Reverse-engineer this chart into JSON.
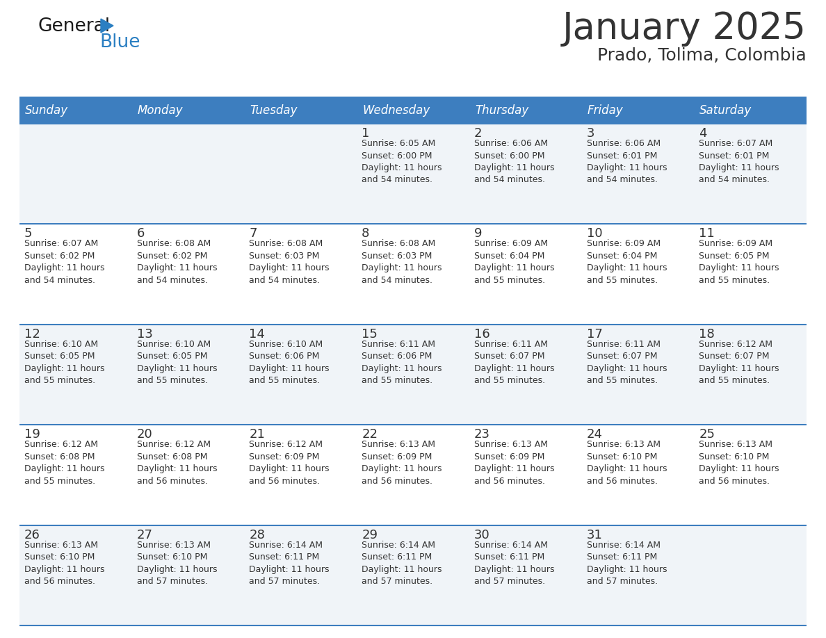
{
  "title": "January 2025",
  "subtitle": "Prado, Tolima, Colombia",
  "header_color": "#3d7ebf",
  "header_text_color": "#ffffff",
  "day_names": [
    "Sunday",
    "Monday",
    "Tuesday",
    "Wednesday",
    "Thursday",
    "Friday",
    "Saturday"
  ],
  "background_color": "#ffffff",
  "cell_even_color": "#f0f4f8",
  "cell_odd_color": "#ffffff",
  "border_color": "#3d7ebf",
  "text_color": "#333333",
  "day_num_color": "#333333",
  "logo_general_color": "#1a1a1a",
  "logo_blue_color": "#2b7fc2",
  "title_fontsize": 38,
  "subtitle_fontsize": 18,
  "header_fontsize": 12,
  "day_num_fontsize": 13,
  "info_fontsize": 9,
  "weeks": [
    [
      {
        "day": 0,
        "info": ""
      },
      {
        "day": 0,
        "info": ""
      },
      {
        "day": 0,
        "info": ""
      },
      {
        "day": 1,
        "info": "Sunrise: 6:05 AM\nSunset: 6:00 PM\nDaylight: 11 hours\nand 54 minutes."
      },
      {
        "day": 2,
        "info": "Sunrise: 6:06 AM\nSunset: 6:00 PM\nDaylight: 11 hours\nand 54 minutes."
      },
      {
        "day": 3,
        "info": "Sunrise: 6:06 AM\nSunset: 6:01 PM\nDaylight: 11 hours\nand 54 minutes."
      },
      {
        "day": 4,
        "info": "Sunrise: 6:07 AM\nSunset: 6:01 PM\nDaylight: 11 hours\nand 54 minutes."
      }
    ],
    [
      {
        "day": 5,
        "info": "Sunrise: 6:07 AM\nSunset: 6:02 PM\nDaylight: 11 hours\nand 54 minutes."
      },
      {
        "day": 6,
        "info": "Sunrise: 6:08 AM\nSunset: 6:02 PM\nDaylight: 11 hours\nand 54 minutes."
      },
      {
        "day": 7,
        "info": "Sunrise: 6:08 AM\nSunset: 6:03 PM\nDaylight: 11 hours\nand 54 minutes."
      },
      {
        "day": 8,
        "info": "Sunrise: 6:08 AM\nSunset: 6:03 PM\nDaylight: 11 hours\nand 54 minutes."
      },
      {
        "day": 9,
        "info": "Sunrise: 6:09 AM\nSunset: 6:04 PM\nDaylight: 11 hours\nand 55 minutes."
      },
      {
        "day": 10,
        "info": "Sunrise: 6:09 AM\nSunset: 6:04 PM\nDaylight: 11 hours\nand 55 minutes."
      },
      {
        "day": 11,
        "info": "Sunrise: 6:09 AM\nSunset: 6:05 PM\nDaylight: 11 hours\nand 55 minutes."
      }
    ],
    [
      {
        "day": 12,
        "info": "Sunrise: 6:10 AM\nSunset: 6:05 PM\nDaylight: 11 hours\nand 55 minutes."
      },
      {
        "day": 13,
        "info": "Sunrise: 6:10 AM\nSunset: 6:05 PM\nDaylight: 11 hours\nand 55 minutes."
      },
      {
        "day": 14,
        "info": "Sunrise: 6:10 AM\nSunset: 6:06 PM\nDaylight: 11 hours\nand 55 minutes."
      },
      {
        "day": 15,
        "info": "Sunrise: 6:11 AM\nSunset: 6:06 PM\nDaylight: 11 hours\nand 55 minutes."
      },
      {
        "day": 16,
        "info": "Sunrise: 6:11 AM\nSunset: 6:07 PM\nDaylight: 11 hours\nand 55 minutes."
      },
      {
        "day": 17,
        "info": "Sunrise: 6:11 AM\nSunset: 6:07 PM\nDaylight: 11 hours\nand 55 minutes."
      },
      {
        "day": 18,
        "info": "Sunrise: 6:12 AM\nSunset: 6:07 PM\nDaylight: 11 hours\nand 55 minutes."
      }
    ],
    [
      {
        "day": 19,
        "info": "Sunrise: 6:12 AM\nSunset: 6:08 PM\nDaylight: 11 hours\nand 55 minutes."
      },
      {
        "day": 20,
        "info": "Sunrise: 6:12 AM\nSunset: 6:08 PM\nDaylight: 11 hours\nand 56 minutes."
      },
      {
        "day": 21,
        "info": "Sunrise: 6:12 AM\nSunset: 6:09 PM\nDaylight: 11 hours\nand 56 minutes."
      },
      {
        "day": 22,
        "info": "Sunrise: 6:13 AM\nSunset: 6:09 PM\nDaylight: 11 hours\nand 56 minutes."
      },
      {
        "day": 23,
        "info": "Sunrise: 6:13 AM\nSunset: 6:09 PM\nDaylight: 11 hours\nand 56 minutes."
      },
      {
        "day": 24,
        "info": "Sunrise: 6:13 AM\nSunset: 6:10 PM\nDaylight: 11 hours\nand 56 minutes."
      },
      {
        "day": 25,
        "info": "Sunrise: 6:13 AM\nSunset: 6:10 PM\nDaylight: 11 hours\nand 56 minutes."
      }
    ],
    [
      {
        "day": 26,
        "info": "Sunrise: 6:13 AM\nSunset: 6:10 PM\nDaylight: 11 hours\nand 56 minutes."
      },
      {
        "day": 27,
        "info": "Sunrise: 6:13 AM\nSunset: 6:10 PM\nDaylight: 11 hours\nand 57 minutes."
      },
      {
        "day": 28,
        "info": "Sunrise: 6:14 AM\nSunset: 6:11 PM\nDaylight: 11 hours\nand 57 minutes."
      },
      {
        "day": 29,
        "info": "Sunrise: 6:14 AM\nSunset: 6:11 PM\nDaylight: 11 hours\nand 57 minutes."
      },
      {
        "day": 30,
        "info": "Sunrise: 6:14 AM\nSunset: 6:11 PM\nDaylight: 11 hours\nand 57 minutes."
      },
      {
        "day": 31,
        "info": "Sunrise: 6:14 AM\nSunset: 6:11 PM\nDaylight: 11 hours\nand 57 minutes."
      },
      {
        "day": 0,
        "info": ""
      }
    ]
  ]
}
